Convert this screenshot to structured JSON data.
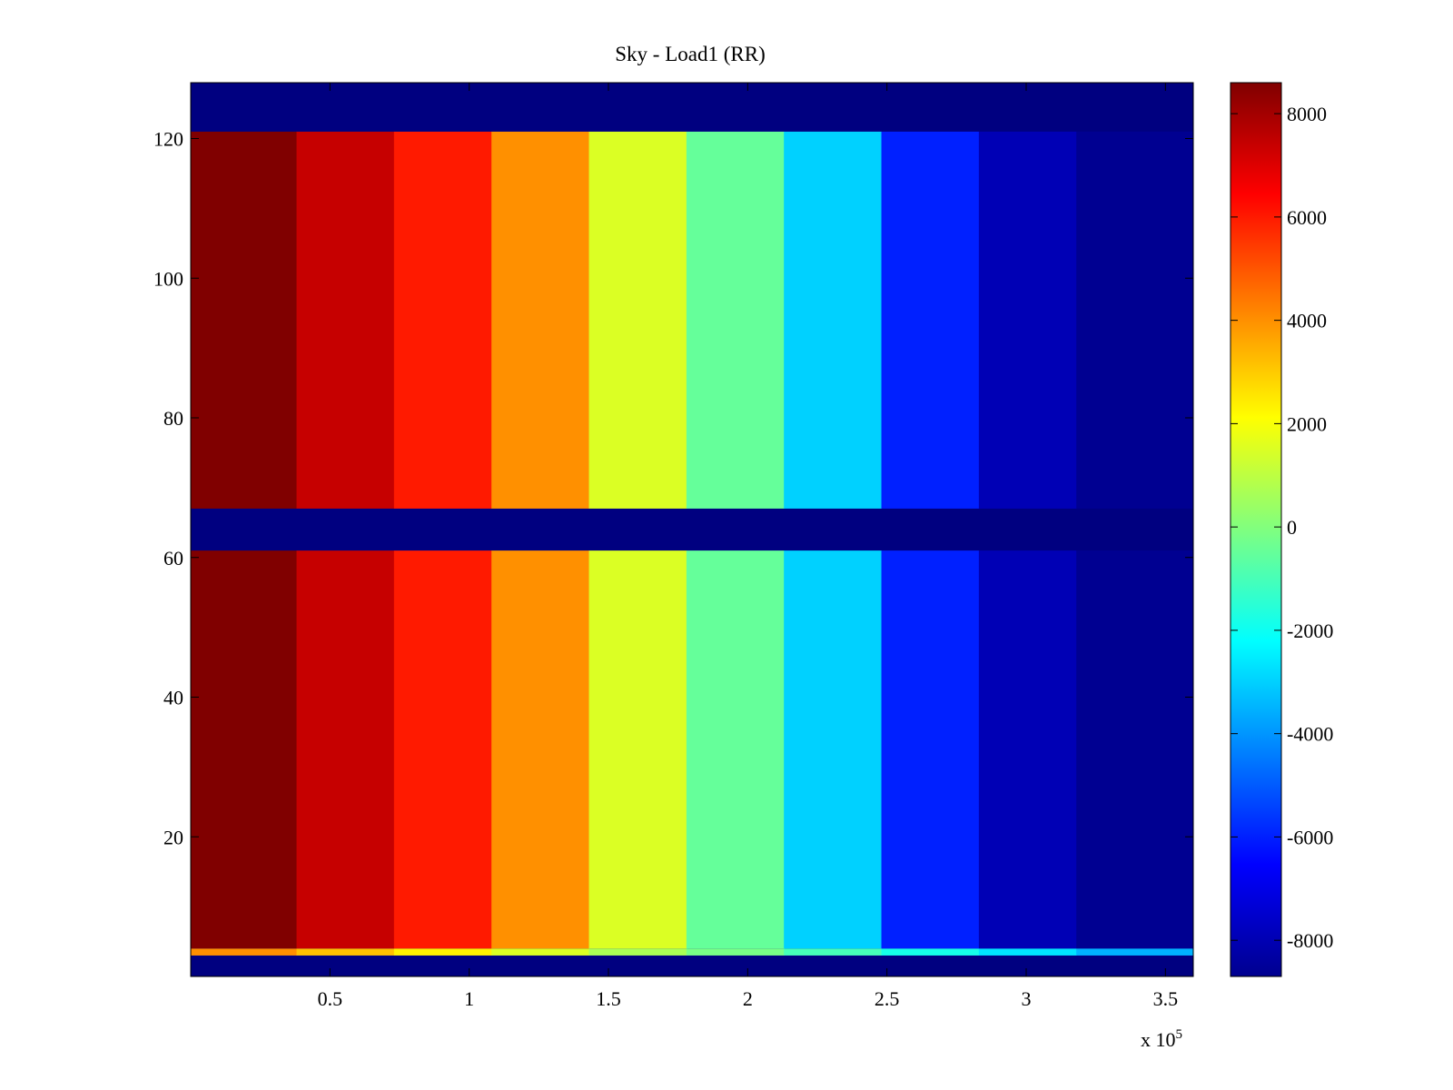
{
  "chart_data": [
    {
      "type": "heatmap",
      "title": "Sky - Load1 (RR)",
      "xlabel": "",
      "ylabel": "",
      "x_exponent_label": {
        "base": "x 10",
        "exponent": "5"
      },
      "xlim": [
        0,
        3.6
      ],
      "ylim": [
        0,
        128
      ],
      "xticks": [
        0.5,
        1,
        1.5,
        2,
        2.5,
        3,
        3.5
      ],
      "xtick_labels": [
        "0.5",
        "1",
        "1.5",
        "2",
        "2.5",
        "3",
        "3.5"
      ],
      "yticks": [
        20,
        40,
        60,
        80,
        100,
        120
      ],
      "ytick_labels": [
        "20",
        "40",
        "60",
        "80",
        "100",
        "120"
      ],
      "colormap": "jet",
      "clim": [
        -8700,
        8600
      ],
      "grid": false,
      "column_band_edges": [
        0,
        0.38,
        0.73,
        1.08,
        1.43,
        1.78,
        2.13,
        2.48,
        2.83,
        3.18,
        3.6
      ],
      "column_band_values": [
        8600,
        7400,
        6000,
        4000,
        1500,
        -500,
        -3000,
        -6000,
        -7800,
        -8400
      ],
      "rows": [
        {
          "y0": 0,
          "y1": 3,
          "value": -8700
        },
        {
          "y0": 3,
          "y1": 4,
          "value": -3000,
          "note_value_gradient": [
            4000,
            -3500
          ]
        },
        {
          "y0": 4,
          "y1": 61,
          "value": "per-column band"
        },
        {
          "y0": 61,
          "y1": 67,
          "value": -8700
        },
        {
          "y0": 67,
          "y1": 121,
          "value": "per-column band"
        },
        {
          "y0": 121,
          "y1": 128,
          "value": -8700
        }
      ]
    },
    {
      "type": "colorbar",
      "colormap": "jet",
      "range": [
        -8700,
        8600
      ],
      "ticks": [
        8000,
        6000,
        4000,
        2000,
        0,
        -2000,
        -4000,
        -6000,
        -8000
      ],
      "tick_labels": [
        "8000",
        "6000",
        "4000",
        "2000",
        "0",
        "-2000",
        "-4000",
        "-6000",
        "-8000"
      ]
    }
  ]
}
